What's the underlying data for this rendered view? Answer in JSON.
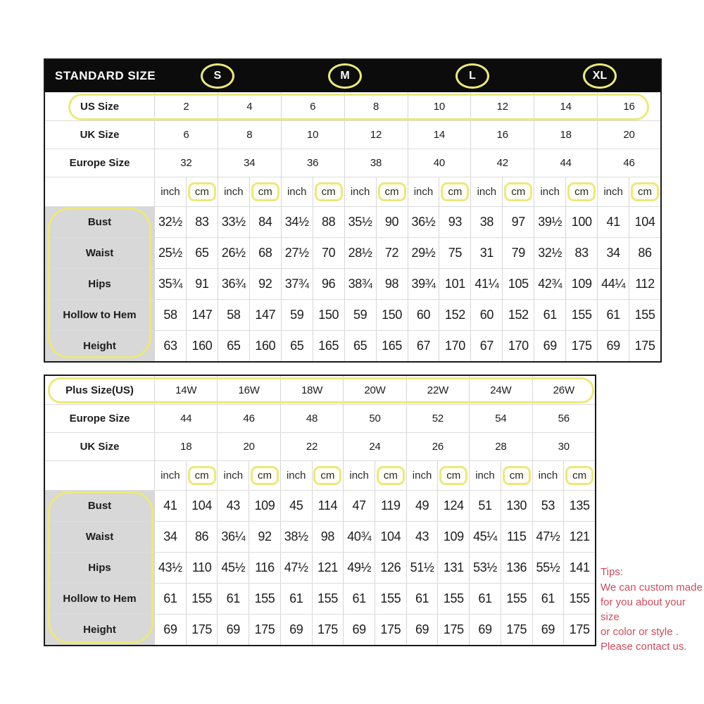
{
  "annotation_color": "#ece87d",
  "standard_table": {
    "header": {
      "title": "STANDARD SIZE",
      "size_groups": [
        "S",
        "M",
        "L",
        "XL"
      ]
    },
    "size_rows": [
      {
        "label": "US Size",
        "values": [
          "2",
          "4",
          "6",
          "8",
          "10",
          "12",
          "14",
          "16"
        ],
        "highlighted": true
      },
      {
        "label": "UK Size",
        "values": [
          "6",
          "8",
          "10",
          "12",
          "14",
          "16",
          "18",
          "20"
        ],
        "highlighted": false
      },
      {
        "label": "Europe Size",
        "values": [
          "32",
          "34",
          "36",
          "38",
          "40",
          "42",
          "44",
          "46"
        ],
        "highlighted": false
      }
    ],
    "units": {
      "inch": "inch",
      "cm": "cm"
    },
    "unit_pairs": 8,
    "measure_rows": [
      {
        "label": "Bust",
        "values": [
          "32½",
          "83",
          "33½",
          "84",
          "34½",
          "88",
          "35½",
          "90",
          "36½",
          "93",
          "38",
          "97",
          "39½",
          "100",
          "41",
          "104"
        ]
      },
      {
        "label": "Waist",
        "values": [
          "25½",
          "65",
          "26½",
          "68",
          "27½",
          "70",
          "28½",
          "72",
          "29½",
          "75",
          "31",
          "79",
          "32½",
          "83",
          "34",
          "86"
        ]
      },
      {
        "label": "Hips",
        "values": [
          "35¾",
          "91",
          "36¾",
          "92",
          "37¾",
          "96",
          "38¾",
          "98",
          "39¾",
          "101",
          "41¼",
          "105",
          "42¾",
          "109",
          "44¼",
          "112"
        ]
      },
      {
        "label": "Hollow to Hem",
        "values": [
          "58",
          "147",
          "58",
          "147",
          "59",
          "150",
          "59",
          "150",
          "60",
          "152",
          "60",
          "152",
          "61",
          "155",
          "61",
          "155"
        ]
      },
      {
        "label": "Height",
        "values": [
          "63",
          "160",
          "65",
          "160",
          "65",
          "165",
          "65",
          "165",
          "67",
          "170",
          "67",
          "170",
          "69",
          "175",
          "69",
          "175"
        ]
      }
    ]
  },
  "plus_table": {
    "size_rows": [
      {
        "label": "Plus Size(US)",
        "values": [
          "14W",
          "16W",
          "18W",
          "20W",
          "22W",
          "24W",
          "26W"
        ],
        "highlighted": true
      },
      {
        "label": "Europe Size",
        "values": [
          "44",
          "46",
          "48",
          "50",
          "52",
          "54",
          "56"
        ],
        "highlighted": false
      },
      {
        "label": "UK Size",
        "values": [
          "18",
          "20",
          "22",
          "24",
          "26",
          "28",
          "30"
        ],
        "highlighted": false
      }
    ],
    "units": {
      "inch": "inch",
      "cm": "cm"
    },
    "unit_pairs": 7,
    "measure_rows": [
      {
        "label": "Bust",
        "values": [
          "41",
          "104",
          "43",
          "109",
          "45",
          "114",
          "47",
          "119",
          "49",
          "124",
          "51",
          "130",
          "53",
          "135"
        ]
      },
      {
        "label": "Waist",
        "values": [
          "34",
          "86",
          "36¼",
          "92",
          "38½",
          "98",
          "40¾",
          "104",
          "43",
          "109",
          "45¼",
          "115",
          "47½",
          "121"
        ]
      },
      {
        "label": "Hips",
        "values": [
          "43½",
          "110",
          "45½",
          "116",
          "47½",
          "121",
          "49½",
          "126",
          "51½",
          "131",
          "53½",
          "136",
          "55½",
          "141"
        ]
      },
      {
        "label": "Hollow to Hem",
        "values": [
          "61",
          "155",
          "61",
          "155",
          "61",
          "155",
          "61",
          "155",
          "61",
          "155",
          "61",
          "155",
          "61",
          "155"
        ]
      },
      {
        "label": "Height",
        "values": [
          "69",
          "175",
          "69",
          "175",
          "69",
          "175",
          "69",
          "175",
          "69",
          "175",
          "69",
          "175",
          "69",
          "175"
        ]
      }
    ]
  },
  "tips": {
    "title": "Tips:",
    "lines": [
      "We can custom made",
      "for you about your size",
      "or color or style .",
      "Please contact us."
    ],
    "color": "#d14a5c"
  }
}
